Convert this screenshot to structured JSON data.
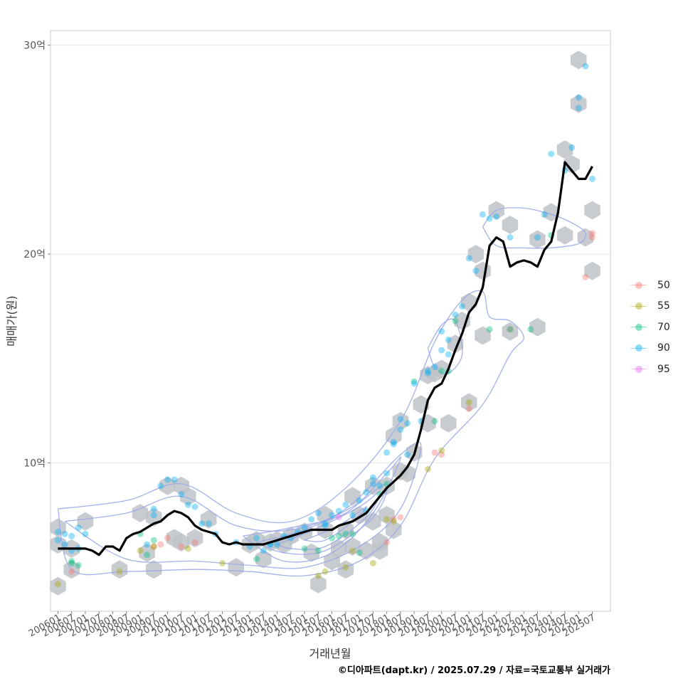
{
  "chart_data": {
    "type": "scatter",
    "xlabel": "거래년월",
    "ylabel": "매매가(원)",
    "x_tick_labels": [
      "200601",
      "200607",
      "200701",
      "200707",
      "200801",
      "200807",
      "200901",
      "200907",
      "201001",
      "201007",
      "201101",
      "201107",
      "201201",
      "201207",
      "201301",
      "201307",
      "201401",
      "201407",
      "201501",
      "201507",
      "201601",
      "201607",
      "201701",
      "201707",
      "201801",
      "201807",
      "201901",
      "201907",
      "202001",
      "202007",
      "202101",
      "202107",
      "202201",
      "202207",
      "202301",
      "202307",
      "202401",
      "202407",
      "202501",
      "202507"
    ],
    "y_ticks": [
      {
        "value": 10,
        "label": "10억"
      },
      {
        "value": 20,
        "label": "20억"
      },
      {
        "value": 30,
        "label": "30억"
      }
    ],
    "x_range": [
      "2005-11",
      "2026-02"
    ],
    "ylim": [
      3.0,
      30.6
    ],
    "y_unit": "억원",
    "legend_position": "right",
    "grid": true,
    "colors": {
      "50": "#F8766D",
      "55": "#A3A500",
      "70": "#00BF7D",
      "90": "#00B0F6",
      "95": "#E76BF3",
      "trend_line": "#000000",
      "hexbin": "#BEC3C8",
      "contour": "#9AA8E8"
    },
    "legend": [
      {
        "label": "50"
      },
      {
        "label": "55"
      },
      {
        "label": "70"
      },
      {
        "label": "90"
      },
      {
        "label": "95"
      }
    ],
    "trend_line": {
      "x": [
        "2006-01",
        "2006-06",
        "2007-01",
        "2007-04",
        "2007-07",
        "2007-10",
        "2008-01",
        "2008-04",
        "2008-07",
        "2008-10",
        "2009-01",
        "2009-04",
        "2009-07",
        "2009-10",
        "2010-01",
        "2010-04",
        "2010-07",
        "2010-10",
        "2011-01",
        "2011-04",
        "2011-07",
        "2011-10",
        "2012-01",
        "2012-04",
        "2012-07",
        "2012-10",
        "2013-01",
        "2013-04",
        "2013-07",
        "2013-10",
        "2014-01",
        "2014-04",
        "2014-07",
        "2014-10",
        "2015-01",
        "2015-04",
        "2015-07",
        "2015-10",
        "2016-01",
        "2016-04",
        "2016-07",
        "2016-10",
        "2017-01",
        "2017-04",
        "2017-07",
        "2017-10",
        "2018-01",
        "2018-04",
        "2018-07",
        "2018-10",
        "2019-01",
        "2019-04",
        "2019-07",
        "2019-10",
        "2020-01",
        "2020-04",
        "2020-07",
        "2020-10",
        "2021-01",
        "2021-04",
        "2021-07",
        "2021-10",
        "2022-01",
        "2022-04",
        "2022-07",
        "2022-10",
        "2023-01",
        "2023-04",
        "2023-07",
        "2023-10",
        "2024-01",
        "2024-04",
        "2024-07",
        "2024-10",
        "2025-01",
        "2025-04",
        "2025-07"
      ],
      "y": [
        5.9,
        5.9,
        5.9,
        5.8,
        5.6,
        6.0,
        6.0,
        5.8,
        6.4,
        6.6,
        6.7,
        6.9,
        7.1,
        7.2,
        7.5,
        7.7,
        7.6,
        7.4,
        7.0,
        6.8,
        6.7,
        6.6,
        6.2,
        6.1,
        6.2,
        6.1,
        6.1,
        6.1,
        6.1,
        6.2,
        6.3,
        6.4,
        6.5,
        6.6,
        6.7,
        6.8,
        6.8,
        6.8,
        6.8,
        7.0,
        7.1,
        7.2,
        7.4,
        7.6,
        8.0,
        8.4,
        8.8,
        9.1,
        9.4,
        9.8,
        10.4,
        11.6,
        13.0,
        13.6,
        13.8,
        14.5,
        15.4,
        16.2,
        17.2,
        17.6,
        18.4,
        20.4,
        20.8,
        20.6,
        19.4,
        19.6,
        19.7,
        19.6,
        19.4,
        20.2,
        20.6,
        22.0,
        24.4,
        24.0,
        23.6,
        23.6,
        24.2
      ]
    },
    "hexbins": {
      "x": [
        "2006-01",
        "2006-01",
        "2006-01",
        "2006-07",
        "2007-01",
        "2006-07",
        "2008-04",
        "2009-01",
        "2009-04",
        "2009-07",
        "2009-07",
        "2010-01",
        "2010-04",
        "2010-07",
        "2010-07",
        "2010-10",
        "2011-01",
        "2011-07",
        "2012-07",
        "2013-01",
        "2013-04",
        "2013-07",
        "2013-10",
        "2014-01",
        "2014-04",
        "2014-07",
        "2015-01",
        "2015-04",
        "2015-07",
        "2015-10",
        "2015-10",
        "2016-01",
        "2016-04",
        "2016-07",
        "2016-07",
        "2016-10",
        "2016-10",
        "2017-01",
        "2017-04",
        "2017-07",
        "2017-07",
        "2017-10",
        "2017-10",
        "2018-01",
        "2018-01",
        "2018-04",
        "2018-04",
        "2018-07",
        "2018-07",
        "2018-10",
        "2019-01",
        "2019-04",
        "2019-07",
        "2019-07",
        "2019-10",
        "2020-01",
        "2020-04",
        "2020-07",
        "2020-10",
        "2021-01",
        "2021-01",
        "2021-04",
        "2021-07",
        "2021-07",
        "2022-01",
        "2022-07",
        "2022-07",
        "2023-07",
        "2023-07",
        "2024-01",
        "2024-07",
        "2024-07",
        "2024-10",
        "2025-01",
        "2025-01",
        "2025-04",
        "2025-07",
        "2025-07"
      ],
      "y": [
        6.1,
        6.9,
        4.1,
        4.9,
        7.2,
        5.9,
        4.9,
        7.6,
        5.7,
        7.4,
        4.9,
        8.9,
        6.4,
        8.9,
        6.2,
        8.4,
        6.4,
        7.3,
        5.0,
        6.1,
        6.3,
        5.4,
        6.2,
        6.3,
        6.1,
        6.5,
        6.7,
        5.7,
        4.2,
        7.5,
        6.8,
        5.3,
        5.9,
        6.8,
        4.9,
        8.4,
        6.0,
        7.5,
        5.8,
        8.9,
        7.2,
        6.2,
        5.8,
        8.9,
        7.5,
        6.8,
        11.3,
        9.6,
        12.0,
        9.5,
        10.5,
        12.8,
        14.2,
        11.9,
        14.3,
        14.5,
        11.9,
        15.7,
        16.8,
        17.7,
        12.9,
        20.0,
        19.2,
        16.1,
        22.1,
        21.4,
        16.3,
        20.7,
        16.5,
        22.0,
        20.9,
        25.0,
        24.3,
        29.3,
        27.2,
        20.8,
        19.2,
        22.1
      ]
    },
    "series": [
      {
        "name": "50",
        "x": [
          "2006-07",
          "2009-07",
          "2010-01",
          "2011-01",
          "2018-01",
          "2018-04",
          "2018-07",
          "2019-10",
          "2020-01",
          "2021-01",
          "2022-07",
          "2025-04",
          "2025-07",
          "2025-07",
          "2010-07",
          "2009-10"
        ],
        "y": [
          4.8,
          6.0,
          6.4,
          6.2,
          6.2,
          7.3,
          7.4,
          10.5,
          10.4,
          12.6,
          16.4,
          18.9,
          21.0,
          20.8,
          6.0,
          6.1
        ]
      },
      {
        "name": "55",
        "x": [
          "2006-01",
          "2008-04",
          "2009-01",
          "2009-07",
          "2010-10",
          "2012-01",
          "2015-10",
          "2016-07",
          "2016-10",
          "2017-07",
          "2018-01",
          "2018-04",
          "2019-07",
          "2020-01",
          "2021-01",
          "2015-07"
        ],
        "y": [
          4.2,
          4.8,
          5.8,
          6.0,
          5.9,
          5.2,
          4.8,
          5.0,
          5.8,
          5.2,
          7.3,
          7.2,
          9.7,
          10.6,
          12.9,
          4.6
        ]
      },
      {
        "name": "70",
        "x": [
          "2006-07",
          "2006-10",
          "2009-01",
          "2009-04",
          "2013-04",
          "2015-01",
          "2015-07",
          "2016-01",
          "2016-04",
          "2016-10",
          "2017-01",
          "2017-10",
          "2018-01",
          "2019-01",
          "2019-10",
          "2020-01",
          "2020-04",
          "2020-07",
          "2021-10",
          "2022-07",
          "2023-04",
          "2024-01",
          "2006-07",
          "2009-07",
          "2016-07"
        ],
        "y": [
          5.2,
          5.1,
          6.6,
          5.6,
          5.4,
          5.9,
          5.8,
          6.4,
          6.5,
          6.6,
          5.7,
          8.5,
          9.0,
          13.9,
          12.0,
          14.4,
          14.4,
          16.8,
          16.4,
          16.4,
          16.4,
          20.9,
          5.3,
          6.3,
          6.6
        ]
      },
      {
        "name": "90",
        "x": [
          "2006-01",
          "2006-01",
          "2006-04",
          "2006-04",
          "2006-07",
          "2006-07",
          "2006-10",
          "2007-01",
          "2009-04",
          "2009-07",
          "2009-10",
          "2010-01",
          "2010-04",
          "2010-07",
          "2010-10",
          "2011-01",
          "2011-04",
          "2011-07",
          "2011-10",
          "2012-07",
          "2013-01",
          "2013-04",
          "2013-07",
          "2013-10",
          "2014-01",
          "2014-04",
          "2014-07",
          "2014-10",
          "2015-01",
          "2015-04",
          "2015-07",
          "2015-10",
          "2016-01",
          "2016-04",
          "2016-07",
          "2016-10",
          "2017-01",
          "2017-04",
          "2017-07",
          "2017-07",
          "2017-10",
          "2018-01",
          "2018-01",
          "2018-04",
          "2018-04",
          "2018-07",
          "2018-07",
          "2018-10",
          "2019-01",
          "2019-04",
          "2019-07",
          "2019-10",
          "2020-01",
          "2020-01",
          "2020-04",
          "2020-04",
          "2020-07",
          "2020-10",
          "2021-01",
          "2021-04",
          "2021-07",
          "2021-10",
          "2022-01",
          "2022-07",
          "2023-07",
          "2023-10",
          "2024-01",
          "2024-07",
          "2024-10",
          "2025-01",
          "2025-01",
          "2025-04",
          "2025-07",
          "2009-07",
          "2017-04",
          "2019-07",
          "2013-10",
          "2018-10",
          "2015-10",
          "2006-10"
        ],
        "y": [
          6.7,
          6.3,
          6.6,
          6.1,
          6.5,
          5.8,
          6.9,
          6.6,
          6.1,
          7.8,
          8.9,
          9.2,
          9.2,
          8.5,
          8.0,
          7.9,
          7.1,
          7.1,
          6.6,
          6.2,
          6.0,
          6.4,
          5.8,
          6.1,
          6.1,
          6.5,
          6.4,
          6.7,
          6.9,
          7.3,
          7.6,
          7.0,
          7.5,
          7.7,
          8.0,
          7.5,
          8.2,
          8.6,
          9.0,
          9.3,
          8.9,
          9.5,
          10.5,
          10.9,
          11.0,
          11.6,
          12.1,
          11.9,
          13.8,
          12.0,
          14.4,
          14.6,
          15.4,
          16.3,
          15.9,
          15.2,
          17.1,
          17.5,
          19.8,
          19.2,
          21.9,
          21.7,
          21.8,
          20.8,
          20.8,
          21.9,
          24.8,
          24.0,
          25.1,
          27.0,
          27.5,
          29.0,
          23.6,
          7.5,
          7.7,
          14.3,
          6.1,
          10.4,
          7.1,
          5.9
        ]
      },
      {
        "name": "95",
        "x": [
          "2016-04"
        ],
        "y": [
          7.4
        ]
      }
    ],
    "density_contours": [
      {
        "label": "outer",
        "x": [
          "2006-01",
          "2008-07",
          "2010-07",
          "2012-07",
          "2014-07",
          "2016-07",
          "2018-07",
          "2019-10",
          "2020-10",
          "2021-07",
          "2021-10",
          "2022-07",
          "2023-01",
          "2022-07",
          "2021-07",
          "2019-10",
          "2018-07",
          "2017-01",
          "2015-01",
          "2013-01",
          "2011-01",
          "2008-07",
          "2006-07",
          "2006-01"
        ],
        "y": [
          7.8,
          8.2,
          9.0,
          7.6,
          7.2,
          8.8,
          12.0,
          15.8,
          17.8,
          18.2,
          17.0,
          16.8,
          16.0,
          15.2,
          12.8,
          10.2,
          7.0,
          5.3,
          4.6,
          4.8,
          4.9,
          4.8,
          4.9,
          7.8
        ]
      },
      {
        "label": "ring-2",
        "x": [
          "2006-04",
          "2008-07",
          "2010-07",
          "2012-07",
          "2014-07",
          "2016-07",
          "2018-07",
          "2019-04",
          "2018-07",
          "2017-01",
          "2015-01",
          "2013-01",
          "2011-01",
          "2008-07",
          "2006-04"
        ],
        "y": [
          7.2,
          7.6,
          8.4,
          7.0,
          6.8,
          7.8,
          10.4,
          10.8,
          7.8,
          6.0,
          5.0,
          5.1,
          5.3,
          5.4,
          7.2
        ]
      },
      {
        "label": "ring-3",
        "x": [
          "2012-10",
          "2014-07",
          "2016-07",
          "2018-01",
          "2018-07",
          "2017-07",
          "2016-01",
          "2014-04",
          "2012-10"
        ],
        "y": [
          6.5,
          6.9,
          7.6,
          9.5,
          10.2,
          7.6,
          5.7,
          5.3,
          6.5
        ]
      },
      {
        "label": "ring-4",
        "x": [
          "2013-04",
          "2015-01",
          "2016-10",
          "2018-01",
          "2017-07",
          "2015-10",
          "2014-04",
          "2013-04"
        ],
        "y": [
          6.2,
          6.8,
          7.9,
          9.0,
          7.4,
          5.8,
          5.7,
          6.2
        ]
      },
      {
        "label": "ring-5",
        "x": [
          "2014-01",
          "2015-07",
          "2017-01",
          "2017-10",
          "2017-04",
          "2015-10",
          "2014-07",
          "2014-01"
        ],
        "y": [
          6.1,
          6.9,
          7.9,
          8.6,
          7.4,
          6.0,
          5.9,
          6.1
        ]
      },
      {
        "label": "ring-6",
        "x": [
          "2015-01",
          "2016-04",
          "2017-04",
          "2016-10",
          "2015-10",
          "2015-01"
        ],
        "y": [
          6.3,
          7.0,
          7.9,
          7.2,
          6.3,
          6.3
        ]
      },
      {
        "label": "mid-2020",
        "x": [
          "2019-07",
          "2020-01",
          "2020-07",
          "2020-10",
          "2020-04",
          "2019-10",
          "2019-07"
        ],
        "y": [
          15.5,
          16.6,
          16.8,
          15.2,
          14.3,
          14.6,
          15.5
        ]
      },
      {
        "label": "top-2022",
        "x": [
          "2021-07",
          "2022-01",
          "2023-01",
          "2024-01",
          "2024-10",
          "2025-04",
          "2025-01",
          "2024-01",
          "2023-01",
          "2022-01",
          "2021-07"
        ],
        "y": [
          21.3,
          22.1,
          22.2,
          21.9,
          21.5,
          21.0,
          20.5,
          20.3,
          20.3,
          20.4,
          21.3
        ]
      }
    ]
  },
  "caption": "©디아파트(dapt.kr) / 2025.07.29 / 자료=국토교통부 실거래가"
}
